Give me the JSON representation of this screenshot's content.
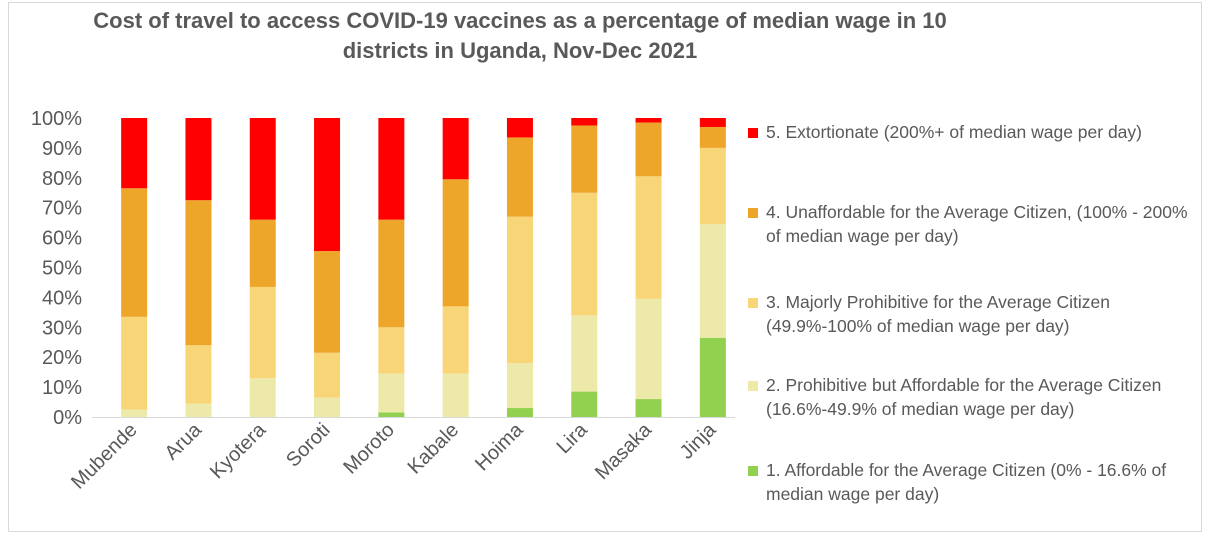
{
  "chart_data": {
    "type": "bar",
    "stacked": true,
    "percent_stacked": true,
    "title": "Cost of travel to access COVID-19 vaccines as a percentage of median wage in 10 districts in Uganda, Nov-Dec 2021",
    "xlabel": "",
    "ylabel": "",
    "ylim": [
      0,
      100
    ],
    "yticks": [
      "0%",
      "10%",
      "20%",
      "30%",
      "40%",
      "50%",
      "60%",
      "70%",
      "80%",
      "90%",
      "100%"
    ],
    "grid": false,
    "legend_position": "right",
    "categories": [
      "Mubende",
      "Arua",
      "Kyotera",
      "Soroti",
      "Moroto",
      "Kabale",
      "Hoima",
      "Lira",
      "Masaka",
      "Jinja"
    ],
    "series": [
      {
        "name": "1. Affordable for the Average Citizen (0% - 16.6% of median wage per day)",
        "color": "#92d050",
        "values": [
          0,
          0,
          0,
          0,
          1.5,
          0,
          3,
          8.5,
          6,
          26.5
        ]
      },
      {
        "name": "2. Prohibitive but Affordable for the Average Citizen (16.6%-49.9% of median wage per day)",
        "color": "#ede9a8",
        "values": [
          2.5,
          4.5,
          13,
          6.5,
          13,
          14.5,
          15,
          25.5,
          33.5,
          38
        ]
      },
      {
        "name": "3. Majorly Prohibitive for the Average Citizen (49.9%-100% of median wage per day)",
        "color": "#f8d678",
        "values": [
          31,
          19.5,
          30.5,
          15,
          15.5,
          22.5,
          49,
          41,
          41,
          25.5
        ]
      },
      {
        "name": "4. Unaffordable for the Average Citizen, (100% - 200% of median wage per day)",
        "color": "#eea62a",
        "values": [
          43,
          48.5,
          22.5,
          34,
          36,
          42.5,
          26.5,
          22.5,
          18,
          7
        ]
      },
      {
        "name": "5. Extortionate (200%+ of median wage per day)",
        "color": "#ff0000",
        "values": [
          23.5,
          27.5,
          34,
          44.5,
          34,
          20.5,
          6.5,
          2.5,
          1.5,
          3
        ]
      }
    ]
  }
}
